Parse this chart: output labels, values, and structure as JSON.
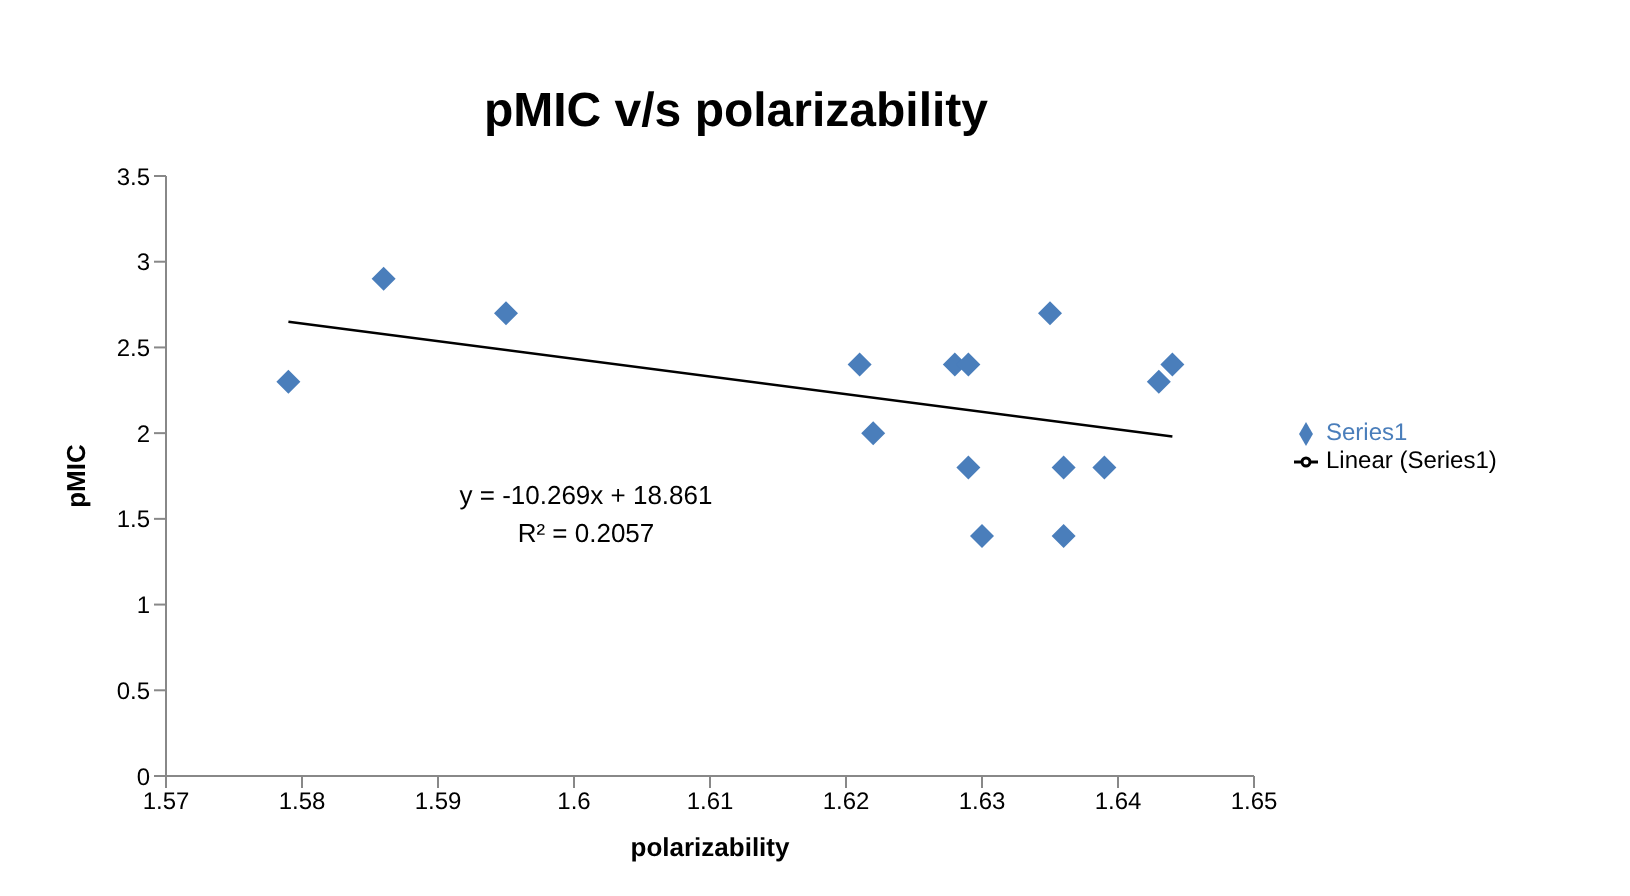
{
  "chart_data": {
    "type": "scatter",
    "title": "pMIC v/s polarizability",
    "xlabel": "polarizability",
    "ylabel": "pMIC",
    "xlim": [
      1.57,
      1.65
    ],
    "xticks": [
      1.57,
      1.58,
      1.59,
      1.6,
      1.61,
      1.62,
      1.63,
      1.64,
      1.65
    ],
    "ylim": [
      0,
      3.5
    ],
    "yticks": [
      0,
      0.5,
      1,
      1.5,
      2,
      2.5,
      3,
      3.5
    ],
    "grid": false,
    "legend": "right",
    "series": [
      {
        "name": "Series1",
        "marker": "diamond",
        "color": "#4a7ebb",
        "x": [
          1.579,
          1.586,
          1.595,
          1.621,
          1.622,
          1.628,
          1.629,
          1.629,
          1.63,
          1.635,
          1.636,
          1.636,
          1.639,
          1.643,
          1.644
        ],
        "values": [
          2.3,
          2.9,
          2.7,
          2.4,
          2.0,
          2.4,
          2.4,
          1.8,
          1.4,
          2.7,
          1.8,
          1.4,
          1.8,
          2.3,
          2.4
        ]
      },
      {
        "name": "Linear (Series1)",
        "type": "line",
        "color": "#000000",
        "marker": "none",
        "x": [
          1.579,
          1.644
        ],
        "values": [
          2.65,
          1.98
        ]
      }
    ],
    "annotations": [
      "y = -10.269x + 18.861",
      "R² = 0.2057"
    ]
  }
}
